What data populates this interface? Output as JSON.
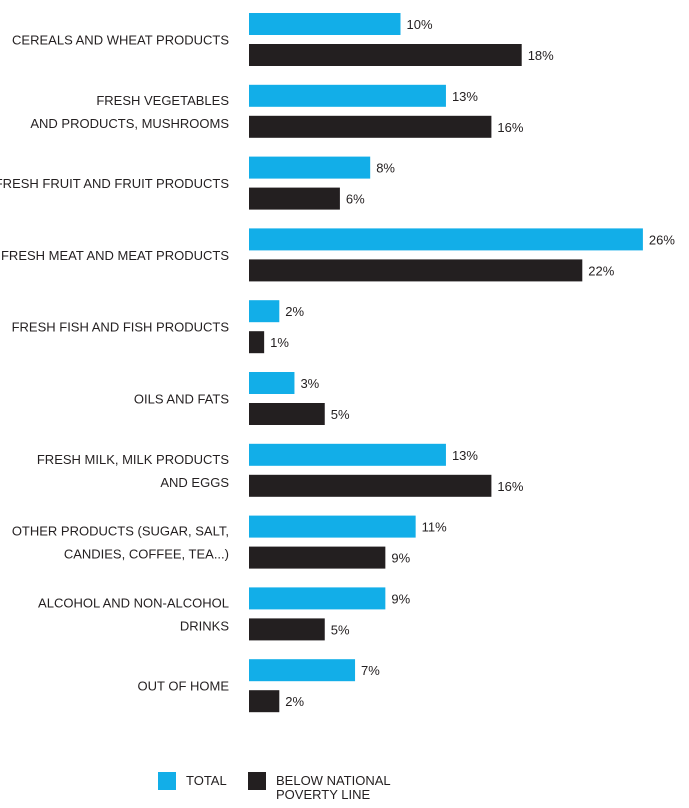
{
  "chart_data": {
    "type": "bar",
    "orientation": "horizontal",
    "categories": [
      [
        "CEREALS AND WHEAT PRODUCTS"
      ],
      [
        "FRESH VEGETABLES",
        "AND PRODUCTS, MUSHROOMS"
      ],
      [
        "FRESH FRUIT AND FRUIT PRODUCTS"
      ],
      [
        "FRESH MEAT AND MEAT PRODUCTS"
      ],
      [
        "FRESH FISH AND FISH PRODUCTS"
      ],
      [
        "OILS AND FATS"
      ],
      [
        "FRESH MILK, MILK PRODUCTS",
        "AND EGGS"
      ],
      [
        "OTHER PRODUCTS (SUGAR, SALT,",
        "CANDIES, COFFEE, TEA...)"
      ],
      [
        "ALCOHOL AND NON-ALCOHOL",
        "DRINKS"
      ],
      [
        "OUT OF HOME"
      ]
    ],
    "series": [
      {
        "name": "TOTAL",
        "color": "#12aee8",
        "values": [
          10,
          13,
          8,
          26,
          2,
          3,
          13,
          11,
          9,
          7
        ],
        "labels": [
          "10%",
          "13%",
          "8%",
          "26%",
          "2%",
          "3%",
          "13%",
          "11%",
          "9%",
          "7%"
        ]
      },
      {
        "name": "BELOW NATIONAL POVERTY LINE",
        "color": "#231f20",
        "values": [
          18,
          16,
          6,
          22,
          1,
          5,
          16,
          9,
          5,
          2
        ],
        "labels": [
          "18%",
          "16%",
          "6%",
          "22%",
          "1%",
          "5%",
          "16%",
          "9%",
          "5%",
          "2%"
        ]
      }
    ],
    "unit": "%",
    "xlim": [
      0,
      26
    ],
    "grid": false,
    "legend_position": "bottom"
  },
  "legend": {
    "items": [
      {
        "lines": [
          "TOTAL"
        ],
        "color": "#12aee8"
      },
      {
        "lines": [
          "BELOW NATIONAL",
          "POVERTY LINE"
        ],
        "color": "#231f20"
      }
    ]
  }
}
